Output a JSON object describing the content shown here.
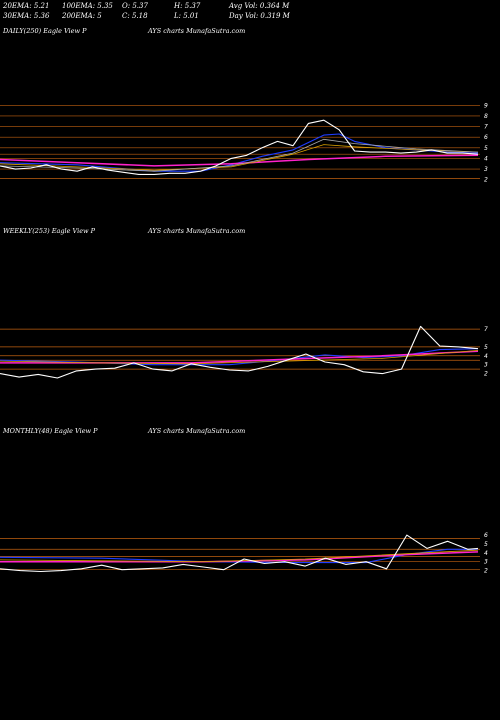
{
  "header": {
    "row1": [
      "20EMA: 5.21",
      "100EMA: 5.35",
      "O: 5.37",
      "H: 5.37",
      "Avg Vol: 0.364  M"
    ],
    "row2": [
      "30EMA: 5.36",
      "200EMA: 5",
      "C: 5.18",
      "L: 5.01",
      "Day Vol: 0.319 M"
    ]
  },
  "panels": [
    {
      "left": "DAILY(250) Eagle   View  P",
      "right": "AYS charts MunafaSutra.com"
    },
    {
      "left": "WEEKLY(253) Eagle   View  P",
      "right": "AYS charts MunafaSutra.com"
    },
    {
      "left": "MONTHLY(48) Eagle   View  P",
      "right": "AYS charts MunafaSutra.com"
    }
  ],
  "colors": {
    "background": "#000000",
    "price": "#ffffff",
    "ema_fast": "#1e3cff",
    "ema_pink": "#ff22cc",
    "ema_gold": "#d9a000",
    "ema_grey": "#aaaaaa",
    "level_lines": "#c06010"
  },
  "chart_data": [
    {
      "type": "line",
      "ylim": [
        1.5,
        9.5
      ],
      "yticks": [
        "9",
        "8",
        "7",
        "6",
        "5",
        "4",
        "3",
        "2"
      ],
      "series": [
        {
          "key": "price",
          "x": [
            0,
            8,
            16,
            24,
            32,
            40,
            48,
            56,
            64,
            72,
            80,
            88,
            96,
            104,
            112,
            120,
            128,
            136,
            144,
            152,
            160,
            168,
            176,
            184,
            192,
            200,
            208,
            216,
            224,
            232,
            240,
            248
          ],
          "values": [
            3.3,
            3.0,
            3.1,
            3.4,
            3.0,
            2.8,
            3.2,
            2.9,
            2.7,
            2.5,
            2.5,
            2.6,
            2.6,
            2.8,
            3.3,
            4.0,
            4.3,
            5.0,
            5.6,
            5.2,
            7.3,
            7.6,
            6.7,
            4.7,
            4.6,
            4.6,
            4.5,
            4.6,
            4.8,
            4.5,
            4.5,
            4.4
          ]
        },
        {
          "key": "ema_fast",
          "x": [
            0,
            40,
            80,
            104,
            120,
            136,
            152,
            168,
            176,
            184,
            200,
            216,
            232,
            248
          ],
          "values": [
            3.6,
            3.4,
            2.8,
            2.8,
            3.4,
            4.2,
            4.8,
            6.2,
            6.3,
            5.6,
            5.0,
            4.8,
            4.6,
            4.5
          ]
        },
        {
          "key": "ema_pink",
          "x": [
            0,
            40,
            80,
            120,
            160,
            200,
            248
          ],
          "values": [
            3.9,
            3.6,
            3.3,
            3.5,
            3.9,
            4.2,
            4.3
          ]
        },
        {
          "key": "ema_gold",
          "x": [
            0,
            40,
            80,
            120,
            152,
            168,
            184,
            216,
            248
          ],
          "values": [
            3.5,
            3.2,
            2.9,
            3.2,
            4.4,
            5.3,
            5.1,
            4.8,
            4.6
          ]
        },
        {
          "key": "ema_grey",
          "x": [
            0,
            40,
            80,
            120,
            152,
            168,
            184,
            216,
            248
          ],
          "values": [
            3.3,
            3.1,
            2.8,
            3.3,
            4.5,
            5.8,
            5.4,
            4.9,
            4.6
          ]
        }
      ],
      "levels": [
        2.1,
        3.0,
        4.0,
        4.4,
        5.0,
        6.0,
        7.0,
        8.0,
        9.0
      ]
    },
    {
      "type": "line",
      "ylim": [
        1.5,
        7.8
      ],
      "yticks": [
        "7",
        "5",
        "4",
        "3",
        "2"
      ],
      "series": [
        {
          "key": "price",
          "x": [
            0,
            10,
            20,
            30,
            40,
            50,
            60,
            70,
            80,
            90,
            100,
            110,
            120,
            130,
            140,
            150,
            160,
            170,
            180,
            190,
            200,
            210,
            220,
            230,
            240,
            250
          ],
          "values": [
            2.0,
            1.6,
            1.9,
            1.5,
            2.3,
            2.5,
            2.6,
            3.2,
            2.5,
            2.3,
            3.1,
            2.7,
            2.4,
            2.3,
            2.8,
            3.5,
            4.2,
            3.3,
            3.0,
            2.2,
            2.0,
            2.5,
            7.3,
            5.1,
            5.0,
            4.8
          ]
        },
        {
          "key": "ema_fast",
          "x": [
            0,
            40,
            80,
            120,
            150,
            170,
            190,
            210,
            230,
            250
          ],
          "values": [
            3.5,
            3.3,
            3.0,
            3.0,
            3.6,
            4.1,
            3.8,
            4.0,
            4.7,
            4.8
          ]
        },
        {
          "key": "ema_pink",
          "x": [
            0,
            50,
            100,
            150,
            200,
            250
          ],
          "values": [
            3.2,
            3.2,
            3.2,
            3.6,
            4.0,
            4.5
          ]
        },
        {
          "key": "ema_gold",
          "x": [
            0,
            50,
            100,
            150,
            200,
            250
          ],
          "values": [
            3.4,
            3.2,
            3.1,
            3.4,
            3.7,
            4.6
          ]
        }
      ],
      "levels": [
        2.5,
        3.5,
        4.0,
        5.0,
        7.0
      ]
    },
    {
      "type": "line",
      "ylim": [
        1.5,
        6.8
      ],
      "yticks": [
        "6",
        "5",
        "4",
        "3",
        "2"
      ],
      "series": [
        {
          "key": "price",
          "x": [
            0,
            2,
            4,
            6,
            8,
            10,
            12,
            14,
            16,
            18,
            20,
            22,
            24,
            26,
            28,
            30,
            32,
            34,
            36,
            38,
            40,
            42,
            44,
            46,
            47
          ],
          "values": [
            2.2,
            2.0,
            1.9,
            2.0,
            2.2,
            2.6,
            2.1,
            2.2,
            2.3,
            2.7,
            2.4,
            2.1,
            3.3,
            2.8,
            3.0,
            2.5,
            3.4,
            2.7,
            3.0,
            2.2,
            6.0,
            4.5,
            5.3,
            4.4,
            4.5
          ]
        },
        {
          "key": "ema_fast",
          "x": [
            0,
            10,
            20,
            30,
            36,
            40,
            44,
            47
          ],
          "values": [
            3.5,
            3.4,
            3.0,
            2.9,
            2.9,
            3.8,
            4.4,
            4.4
          ]
        },
        {
          "key": "ema_pink",
          "x": [
            0,
            10,
            20,
            30,
            40,
            47
          ],
          "values": [
            3.0,
            3.0,
            3.0,
            3.2,
            3.8,
            4.1
          ]
        },
        {
          "key": "ema_gold",
          "x": [
            0,
            10,
            20,
            30,
            40,
            47
          ],
          "values": [
            3.2,
            3.1,
            3.0,
            3.3,
            3.9,
            4.3
          ]
        }
      ],
      "levels": [
        2.1,
        3.0,
        3.6,
        4.4,
        5.6
      ]
    }
  ]
}
